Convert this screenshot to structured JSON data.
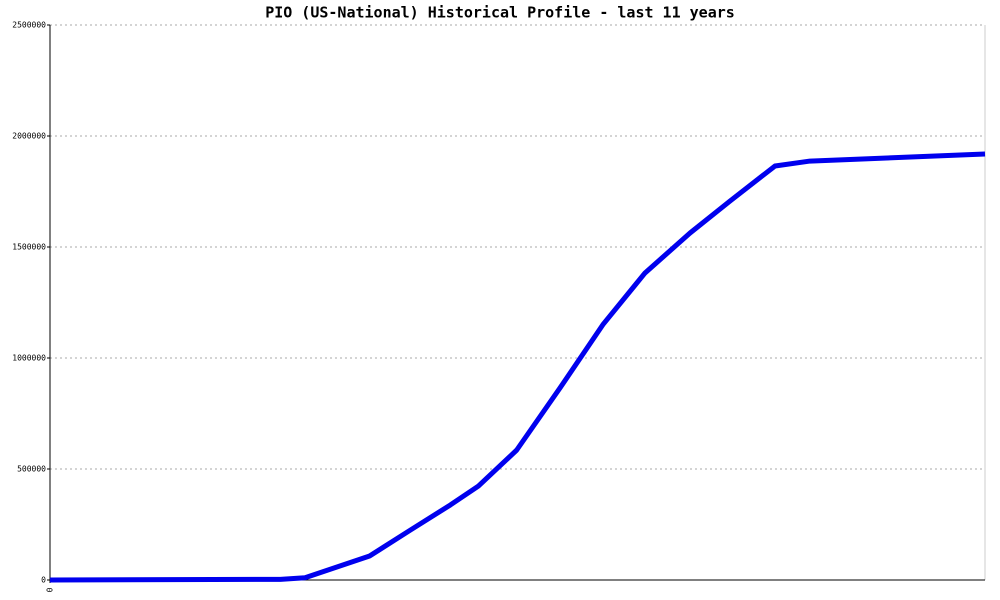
{
  "chart_data": {
    "type": "line",
    "title": "PIO (US-National) Historical Profile - last 11 years",
    "x": [
      0,
      2.71,
      3.0,
      3.76,
      4.24,
      4.71,
      5.04,
      5.49,
      6.0,
      6.51,
      7.0,
      7.53,
      8.0,
      8.53,
      8.94,
      11
    ],
    "series": [
      {
        "color": "#0000ee",
        "values": [
          0,
          3000,
          10000,
          108000,
          225000,
          338000,
          423000,
          585000,
          865000,
          1153000,
          1383000,
          1563000,
          1707000,
          1865000,
          1887000,
          1919000
        ]
      }
    ],
    "xlim": [
      0,
      11
    ],
    "xticks": [
      0
    ],
    "ylim": [
      0,
      2500000
    ],
    "yticks": [
      0,
      500000,
      1000000,
      1500000,
      2000000,
      2500000
    ],
    "grid": true
  }
}
